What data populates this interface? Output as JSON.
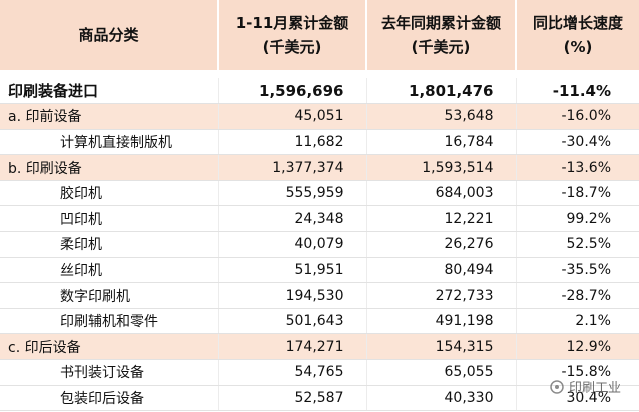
{
  "table": {
    "header": [
      "商品分类",
      [
        "1-11月累计金额",
        "(千美元)"
      ],
      [
        "去年同期累计金额",
        "(千美元)"
      ],
      [
        "同比增长速度",
        "(%)"
      ]
    ],
    "rows": [
      [
        "印刷装备进口",
        "1,596,696",
        "1,801,476",
        "-11.4%"
      ],
      [
        "a. 印前设备",
        "45,051",
        "53,648",
        "-16.0%"
      ],
      [
        "计算机直接制版机",
        "11,682",
        "16,784",
        "-30.4%"
      ],
      [
        "b. 印刷设备",
        "1,377,374",
        "1,593,514",
        "-13.6%"
      ],
      [
        "胶印机",
        "555,959",
        "684,003",
        "-18.7%"
      ],
      [
        "凹印机",
        "24,348",
        "12,221",
        "99.2%"
      ],
      [
        "柔印机",
        "40,079",
        "26,276",
        "52.5%"
      ],
      [
        "丝印机",
        "51,951",
        "80,494",
        "-35.5%"
      ],
      [
        "数字印刷机",
        "194,530",
        "272,733",
        "-28.7%"
      ],
      [
        "印刷辅机和零件",
        "501,643",
        "491,198",
        "2.1%"
      ],
      [
        "c. 印后设备",
        "174,271",
        "154,315",
        "12.9%"
      ],
      [
        "书刊装订设备",
        "54,765",
        "65,055",
        "-15.8%"
      ],
      [
        "包装印后设备",
        "52,587",
        "40,330",
        "30.4%"
      ]
    ]
  },
  "watermark": "印刷工业"
}
